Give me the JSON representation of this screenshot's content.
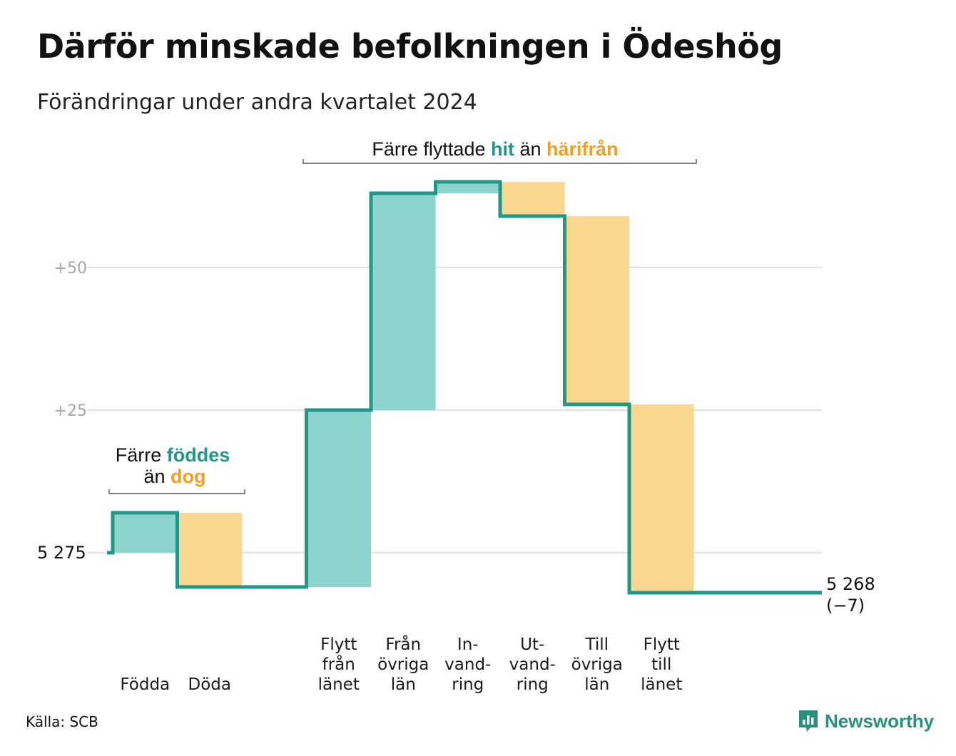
{
  "title": "Därför minskade befolkningen i Ödeshög",
  "subtitle": "Förändringar under andra kvartalet 2024",
  "source": "Källa: SCB",
  "brand": "Newsworthy",
  "colors": {
    "increase": "#8dd5cc",
    "decrease": "#fad68e",
    "line": "#1f9888",
    "grid": "#e2e2e2",
    "inc_text": "#1f9888",
    "dec_text": "#f0a020"
  },
  "annotations": {
    "births": {
      "line1_a": "Färre ",
      "line1_b": "föddes",
      "line2_a": "än ",
      "line2_b": "dog"
    },
    "migration": {
      "a": "Färre flyttade ",
      "b": "hit",
      "c": " än ",
      "d": "härifrån"
    }
  },
  "chart_data": {
    "type": "waterfall",
    "start_value": 5275,
    "start_label": "5 275",
    "end_value": 5268,
    "end_label": "5 268",
    "end_change_label": "(−7)",
    "y_ticks": [
      {
        "value": 25,
        "label": "+25"
      },
      {
        "value": 50,
        "label": "+50"
      }
    ],
    "steps": [
      {
        "label": [
          "",
          "",
          "Födda"
        ],
        "change": 7,
        "kind": "increase"
      },
      {
        "label": [
          "",
          "",
          "Döda"
        ],
        "change": -13,
        "kind": "decrease"
      },
      {
        "label": [
          "",
          "",
          ""
        ],
        "change": 0,
        "kind": "none"
      },
      {
        "label": [
          "Flytt",
          "från",
          "länet"
        ],
        "change": 31,
        "kind": "increase"
      },
      {
        "label": [
          "Från",
          "övriga",
          "län"
        ],
        "change": 38,
        "kind": "increase"
      },
      {
        "label": [
          "In-",
          "vand-",
          "ring"
        ],
        "change": 2,
        "kind": "increase"
      },
      {
        "label": [
          "Ut-",
          "vand-",
          "ring"
        ],
        "change": -6,
        "kind": "decrease"
      },
      {
        "label": [
          "Till",
          "övriga",
          "län"
        ],
        "change": -33,
        "kind": "decrease"
      },
      {
        "label": [
          "Flytt",
          "till",
          "länet"
        ],
        "change": -33,
        "kind": "decrease"
      }
    ]
  }
}
